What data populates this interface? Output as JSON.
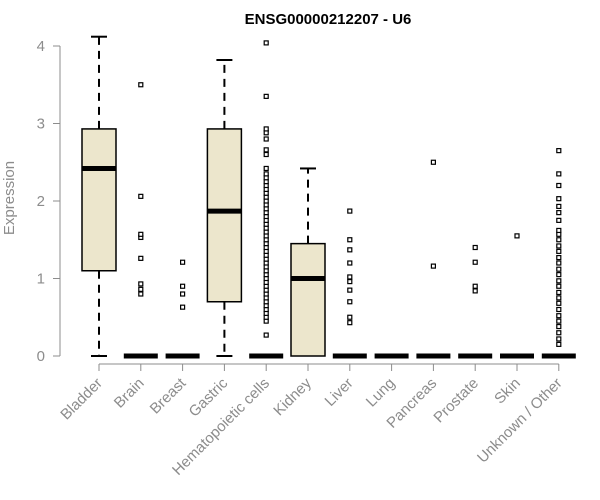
{
  "chart_data": {
    "type": "box",
    "title": "ENSG00000212207 - U6",
    "ylabel": "Expression",
    "xlabel": "",
    "ylim": [
      0,
      4
    ],
    "yticks": [
      "0",
      "1",
      "2",
      "3",
      "4"
    ],
    "grid": false,
    "legend": "none",
    "colors": {
      "box_fill": "#ece6cc",
      "outline": "#000000",
      "axis": "#8c8c8c"
    },
    "categories": [
      "Bladder",
      "Brain",
      "Breast",
      "Gastric",
      "Hematopoietic cells",
      "Kidney",
      "Liver",
      "Lung",
      "Pancreas",
      "Prostate",
      "Skin",
      "Unknown / Other"
    ],
    "boxes": [
      {
        "name": "Bladder",
        "whisker_low": 0,
        "q1": 1.1,
        "median": 2.42,
        "q3": 2.93,
        "whisker_high": 4.12,
        "outliers": []
      },
      {
        "name": "Brain",
        "whisker_low": 0,
        "q1": 0,
        "median": 0,
        "q3": 0,
        "whisker_high": 0,
        "outliers": [
          0.8,
          0.86,
          0.93,
          1.26,
          1.53,
          1.57,
          2.06,
          3.5
        ]
      },
      {
        "name": "Breast",
        "whisker_low": 0,
        "q1": 0,
        "median": 0,
        "q3": 0,
        "whisker_high": 0,
        "outliers": [
          0.63,
          0.8,
          0.9,
          1.21
        ]
      },
      {
        "name": "Gastric",
        "whisker_low": 0,
        "q1": 0.7,
        "median": 1.87,
        "q3": 2.93,
        "whisker_high": 3.82,
        "outliers": []
      },
      {
        "name": "Hematopoietic cells",
        "whisker_low": 0,
        "q1": 0,
        "median": 0,
        "q3": 0,
        "whisker_high": 0,
        "outliers": [
          0.27,
          0.45,
          0.5,
          0.55,
          0.6,
          0.65,
          0.7,
          0.75,
          0.8,
          0.85,
          0.9,
          0.95,
          1.0,
          1.05,
          1.1,
          1.15,
          1.2,
          1.25,
          1.3,
          1.35,
          1.4,
          1.45,
          1.5,
          1.55,
          1.6,
          1.65,
          1.7,
          1.75,
          1.8,
          1.85,
          1.9,
          1.95,
          2.0,
          2.05,
          2.1,
          2.15,
          2.2,
          2.25,
          2.3,
          2.35,
          2.42,
          2.6,
          2.66,
          2.8,
          2.88,
          2.93,
          3.35,
          4.04
        ]
      },
      {
        "name": "Kidney",
        "whisker_low": 0,
        "q1": 0,
        "median": 1.0,
        "q3": 1.45,
        "whisker_high": 2.42,
        "outliers": []
      },
      {
        "name": "Liver",
        "whisker_low": 0,
        "q1": 0,
        "median": 0,
        "q3": 0,
        "whisker_high": 0,
        "outliers": [
          0.43,
          0.5,
          0.7,
          0.85,
          0.96,
          1.02,
          1.2,
          1.37,
          1.5,
          1.87
        ]
      },
      {
        "name": "Lung",
        "whisker_low": 0,
        "q1": 0,
        "median": 0,
        "q3": 0,
        "whisker_high": 0,
        "outliers": []
      },
      {
        "name": "Pancreas",
        "whisker_low": 0,
        "q1": 0,
        "median": 0,
        "q3": 0,
        "whisker_high": 0,
        "outliers": [
          1.16,
          2.5
        ]
      },
      {
        "name": "Prostate",
        "whisker_low": 0,
        "q1": 0,
        "median": 0,
        "q3": 0,
        "whisker_high": 0,
        "outliers": [
          0.84,
          0.9,
          1.21,
          1.4
        ]
      },
      {
        "name": "Skin",
        "whisker_low": 0,
        "q1": 0,
        "median": 0,
        "q3": 0,
        "whisker_high": 0,
        "outliers": [
          1.55
        ]
      },
      {
        "name": "Unknown / Other",
        "whisker_low": 0,
        "q1": 0,
        "median": 0,
        "q3": 0,
        "whisker_high": 0,
        "outliers": [
          0.15,
          0.22,
          0.3,
          0.38,
          0.45,
          0.52,
          0.6,
          0.68,
          0.75,
          0.82,
          0.9,
          0.97,
          1.05,
          1.12,
          1.2,
          1.27,
          1.35,
          1.42,
          1.5,
          1.57,
          1.62,
          1.75,
          1.85,
          1.93,
          2.03,
          2.2,
          2.35,
          2.65
        ]
      }
    ]
  }
}
